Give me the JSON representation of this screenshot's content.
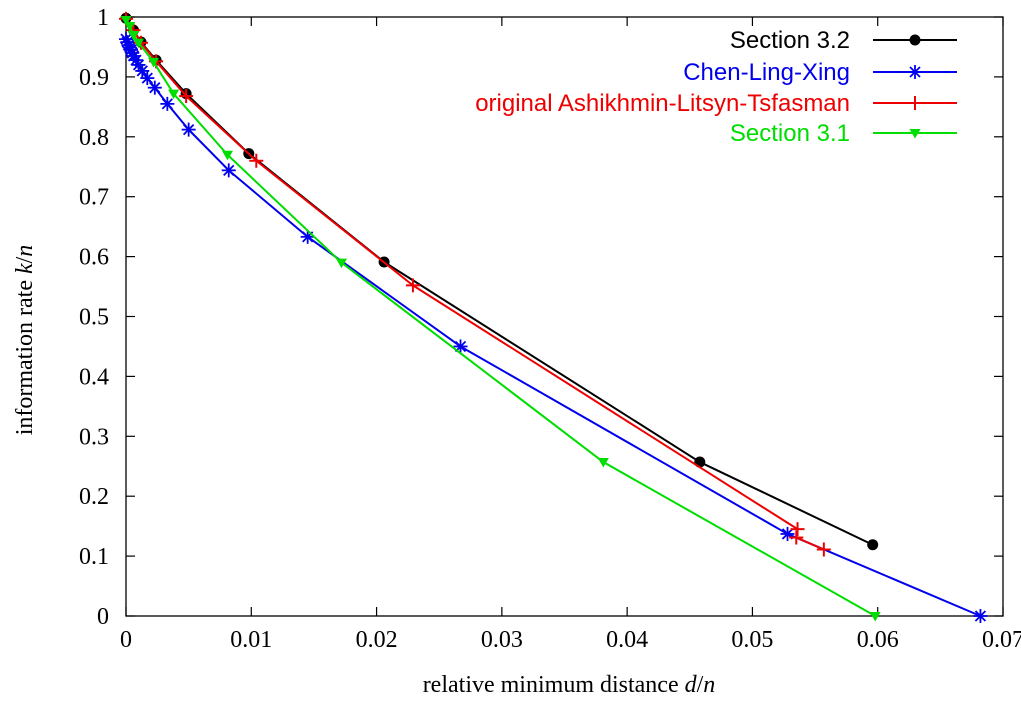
{
  "chart_data": {
    "type": "line",
    "title": "",
    "xlabel_parts": [
      "relative minimum distance ",
      "d",
      "/",
      "n"
    ],
    "ylabel_parts": [
      "information rate ",
      "k",
      "/",
      "n"
    ],
    "xlim": [
      0,
      0.07
    ],
    "ylim": [
      0,
      1
    ],
    "x_ticks": [
      0,
      0.01,
      0.02,
      0.03,
      0.04,
      0.05,
      0.06,
      0.07
    ],
    "x_tick_labels": [
      "0",
      "0.01",
      "0.02",
      "0.03",
      "0.04",
      "0.05",
      "0.06",
      "0.07"
    ],
    "y_ticks": [
      0,
      0.1,
      0.2,
      0.3,
      0.4,
      0.5,
      0.6,
      0.7,
      0.8,
      0.9,
      1
    ],
    "y_tick_labels": [
      "0",
      "0.1",
      "0.2",
      "0.3",
      "0.4",
      "0.5",
      "0.6",
      "0.7",
      "0.8",
      "0.9",
      "1"
    ],
    "grid": false,
    "legend_position": "top-right",
    "series": [
      {
        "name": "Section 3.2",
        "color": "#000000",
        "marker": "circle",
        "x": [
          0.0,
          0.0006,
          0.0012,
          0.0024,
          0.0048,
          0.0098,
          0.0206,
          0.0458,
          0.0596
        ],
        "y": [
          0.998,
          0.978,
          0.958,
          0.928,
          0.872,
          0.772,
          0.591,
          0.257,
          0.119
        ]
      },
      {
        "name": "Chen-Ling-Xing",
        "color": "#0000ee",
        "marker": "asterisk",
        "x": [
          0.0,
          0.0001,
          0.0002,
          0.0003,
          0.0004,
          0.0005,
          0.0006,
          0.0008,
          0.001,
          0.0013,
          0.0017,
          0.0023,
          0.0033,
          0.005,
          0.0082,
          0.0145,
          0.0267,
          0.0528,
          0.0682
        ],
        "y": [
          0.963,
          0.958,
          0.953,
          0.949,
          0.945,
          0.94,
          0.935,
          0.928,
          0.92,
          0.91,
          0.898,
          0.882,
          0.855,
          0.812,
          0.744,
          0.633,
          0.45,
          0.137,
          0.0
        ]
      },
      {
        "name": "original Ashikhmin-Litsyn-Tsfasman",
        "color": "#ee0000",
        "marker": "plus",
        "x": [
          0.0,
          0.0006,
          0.0012,
          0.0024,
          0.0048,
          0.0104,
          0.0229,
          0.0536,
          0.0535,
          0.0557
        ],
        "y": [
          0.997,
          0.978,
          0.957,
          0.926,
          0.868,
          0.76,
          0.552,
          0.145,
          0.131,
          0.111
        ]
      },
      {
        "name": "Section 3.1",
        "color": "#00dd00",
        "marker": "triangle-down",
        "x": [
          0.0,
          0.0003,
          0.0006,
          0.001,
          0.0022,
          0.0038,
          0.0081,
          0.0172,
          0.0381,
          0.0598
        ],
        "y": [
          0.995,
          0.985,
          0.97,
          0.957,
          0.925,
          0.872,
          0.77,
          0.59,
          0.257,
          0.0
        ]
      }
    ]
  }
}
